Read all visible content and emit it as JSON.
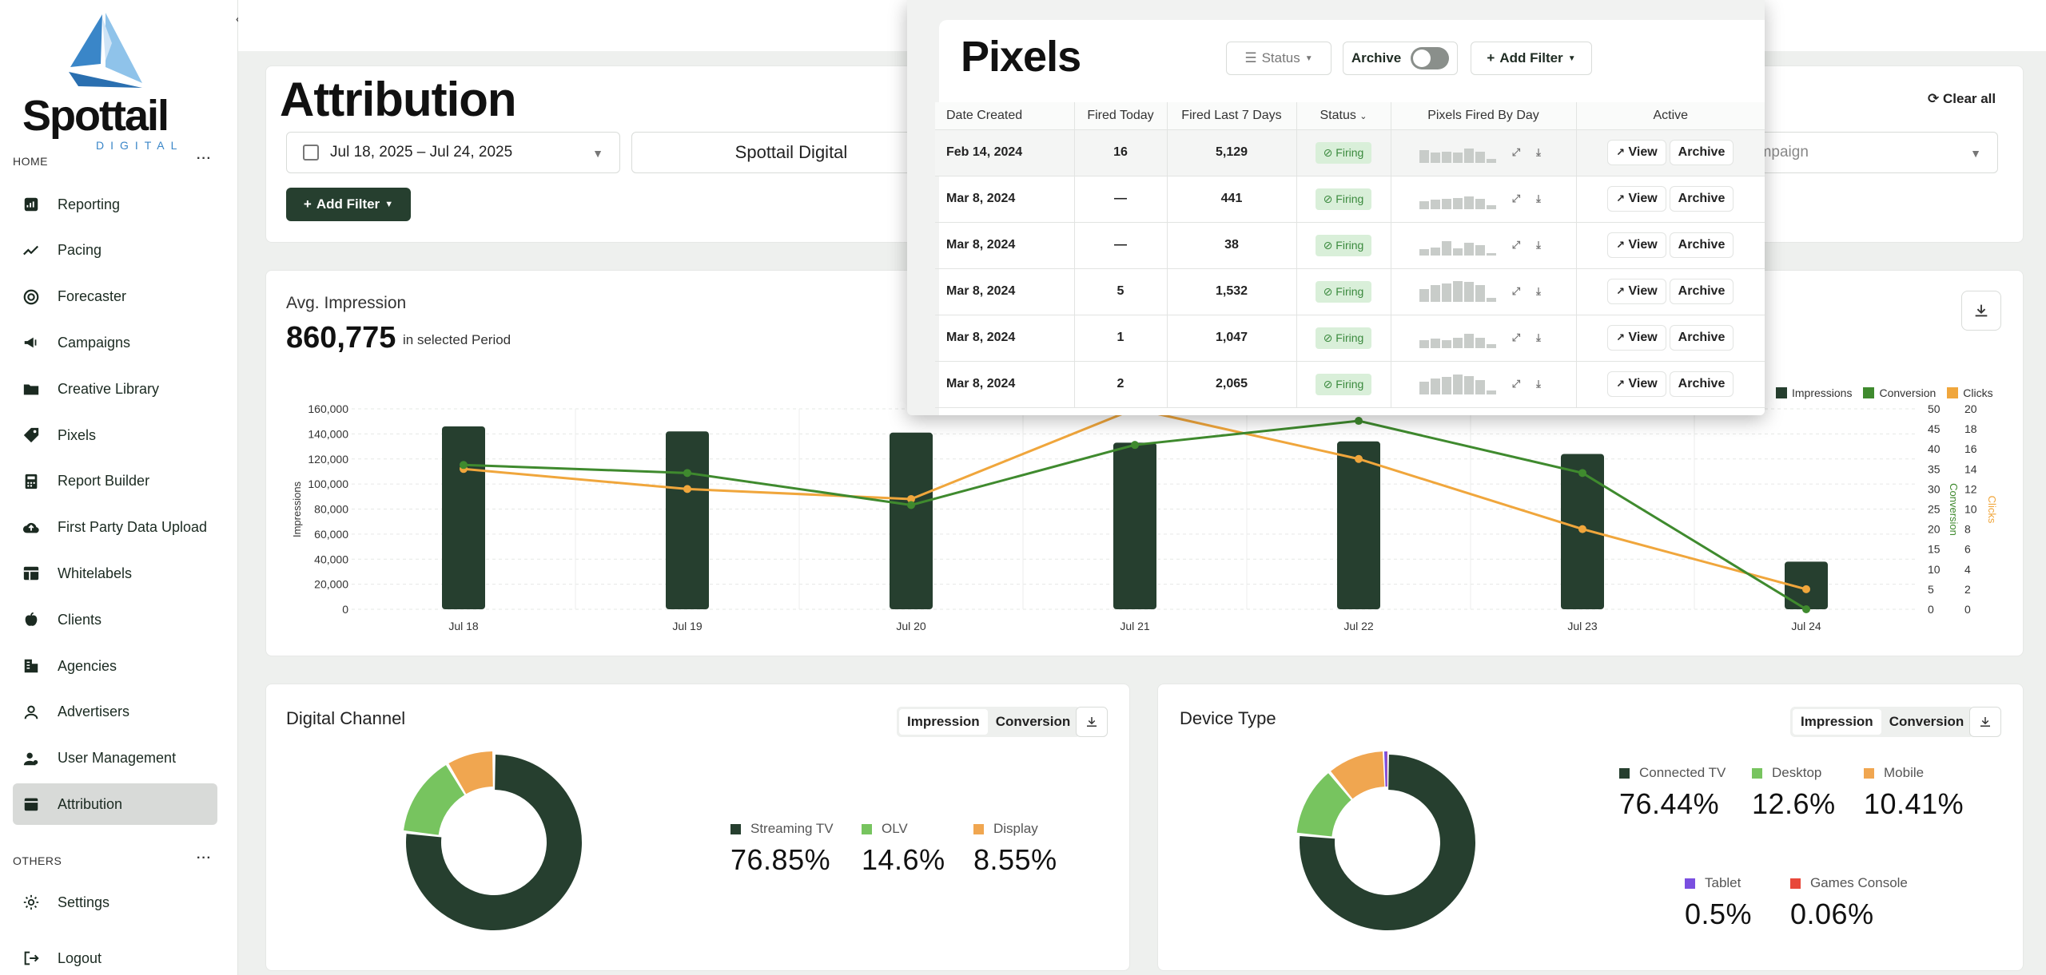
{
  "sidebar": {
    "brand": "Spottail",
    "brand_sub": "DIGITAL",
    "home_label": "HOME",
    "others_label": "OTHERS",
    "more": "···",
    "collapse": "‹",
    "items": [
      {
        "label": "Reporting",
        "icon": "reporting-icon"
      },
      {
        "label": "Pacing",
        "icon": "trend-icon"
      },
      {
        "label": "Forecaster",
        "icon": "forecast-icon"
      },
      {
        "label": "Campaigns",
        "icon": "megaphone-icon"
      },
      {
        "label": "Creative Library",
        "icon": "folder-icon"
      },
      {
        "label": "Pixels",
        "icon": "tag-icon"
      },
      {
        "label": "Report Builder",
        "icon": "calculator-icon"
      },
      {
        "label": "First Party Data Upload",
        "icon": "cloud-upload-icon"
      },
      {
        "label": "Whitelabels",
        "icon": "layout-icon"
      },
      {
        "label": "Clients",
        "icon": "apple-icon"
      },
      {
        "label": "Agencies",
        "icon": "building-icon"
      },
      {
        "label": "Advertisers",
        "icon": "user-icon"
      },
      {
        "label": "User Management",
        "icon": "users-icon"
      },
      {
        "label": "Attribution",
        "icon": "attribution-icon"
      }
    ],
    "others": [
      {
        "label": "Settings",
        "icon": "gear-icon"
      },
      {
        "label": "Logout",
        "icon": "logout-icon"
      }
    ]
  },
  "header": {
    "title": "Attribution",
    "date_range": "Jul 18, 2025 – Jul 24, 2025",
    "client": "Spottail Digital",
    "campaign_placeholder": "ampaign",
    "add_filter": "Add Filter",
    "clear_all": "Clear all"
  },
  "avg": {
    "title": "Avg. Impression",
    "value": "860,775",
    "sub": "in selected Period"
  },
  "chart_data": {
    "type": "bar",
    "categories": [
      "Jul 18",
      "Jul 19",
      "Jul 20",
      "Jul 21",
      "Jul 22",
      "Jul 23",
      "Jul 24"
    ],
    "series": [
      {
        "name": "Impressions",
        "type": "bar",
        "axis": "left",
        "values": [
          146000,
          142000,
          141000,
          133000,
          134000,
          124000,
          38000
        ]
      },
      {
        "name": "Conversion",
        "type": "line",
        "axis": "right1",
        "values": [
          36,
          34,
          26,
          41,
          47,
          34,
          0
        ]
      },
      {
        "name": "Clicks",
        "type": "line",
        "axis": "right2",
        "values": [
          14,
          12,
          11,
          20,
          15,
          8,
          2
        ]
      }
    ],
    "ylabel": "Impressions",
    "y2label": "Conversion",
    "y3label": "Clicks",
    "ylim": [
      0,
      160000
    ],
    "y2lim": [
      0,
      50
    ],
    "y3lim": [
      0,
      20
    ],
    "yticks": [
      "160,000",
      "140,000",
      "120,000",
      "100,000",
      "80,000",
      "60,000",
      "40,000",
      "20,000",
      "0"
    ],
    "y2ticks": [
      "50",
      "45",
      "40",
      "35",
      "30",
      "25",
      "20",
      "15",
      "10",
      "5",
      "0"
    ],
    "y3ticks": [
      "20",
      "18",
      "16",
      "14",
      "12",
      "10",
      "8",
      "6",
      "4",
      "2",
      "0"
    ],
    "colors": {
      "Impressions": "#263f2f",
      "Conversion": "#3f8a2e",
      "Clicks": "#f0a63c"
    },
    "legend": "top-right",
    "grid": true
  },
  "channel": {
    "title": "Digital Channel",
    "toggle": [
      "Impression",
      "Conversion"
    ],
    "slices": [
      {
        "label": "Streaming TV",
        "value": "76.85%",
        "pct": 76.85,
        "color": "#263f2f"
      },
      {
        "label": "OLV",
        "value": "14.6%",
        "pct": 14.6,
        "color": "#77c45f"
      },
      {
        "label": "Display",
        "value": "8.55%",
        "pct": 8.55,
        "color": "#f0a650"
      }
    ]
  },
  "device": {
    "title": "Device Type",
    "toggle": [
      "Impression",
      "Conversion"
    ],
    "slices": [
      {
        "label": "Connected TV",
        "value": "76.44%",
        "pct": 76.44,
        "color": "#263f2f"
      },
      {
        "label": "Desktop",
        "value": "12.6%",
        "pct": 12.6,
        "color": "#77c45f"
      },
      {
        "label": "Mobile",
        "value": "10.41%",
        "pct": 10.41,
        "color": "#f0a650"
      },
      {
        "label": "Tablet",
        "value": "0.5%",
        "pct": 0.5,
        "color": "#7a4fe0"
      },
      {
        "label": "Games Console",
        "value": "0.06%",
        "pct": 0.06,
        "color": "#e8483a"
      }
    ]
  },
  "pixels": {
    "title": "Pixels",
    "status_btn": "Status",
    "archive_label": "Archive",
    "add_filter": "Add Filter",
    "columns": [
      "Date Created",
      "Fired Today",
      "Fired Last 7 Days",
      "Status",
      "Pixels Fired By Day",
      "Active"
    ],
    "view_label": "View",
    "archive_btn": "Archive",
    "rows": [
      {
        "date": "Feb 14, 2024",
        "today": "16",
        "week": "5,129",
        "status": "Firing",
        "spark": [
          0.6,
          0.5,
          0.55,
          0.5,
          0.7,
          0.55,
          0.2
        ]
      },
      {
        "date": "Mar 8, 2024",
        "today": "—",
        "week": "441",
        "status": "Firing",
        "spark": [
          0.4,
          0.45,
          0.5,
          0.55,
          0.6,
          0.5,
          0.2
        ]
      },
      {
        "date": "Mar 8, 2024",
        "today": "—",
        "week": "38",
        "status": "Firing",
        "spark": [
          0.3,
          0.4,
          0.7,
          0.35,
          0.6,
          0.5,
          0.1
        ]
      },
      {
        "date": "Mar 8, 2024",
        "today": "5",
        "week": "1,532",
        "status": "Firing",
        "spark": [
          0.6,
          0.8,
          0.9,
          1.0,
          0.95,
          0.8,
          0.2
        ]
      },
      {
        "date": "Mar 8, 2024",
        "today": "1",
        "week": "1,047",
        "status": "Firing",
        "spark": [
          0.4,
          0.45,
          0.4,
          0.5,
          0.7,
          0.5,
          0.2
        ]
      },
      {
        "date": "Mar 8, 2024",
        "today": "2",
        "week": "2,065",
        "status": "Firing",
        "spark": [
          0.6,
          0.75,
          0.85,
          0.95,
          0.9,
          0.7,
          0.2
        ]
      }
    ]
  }
}
